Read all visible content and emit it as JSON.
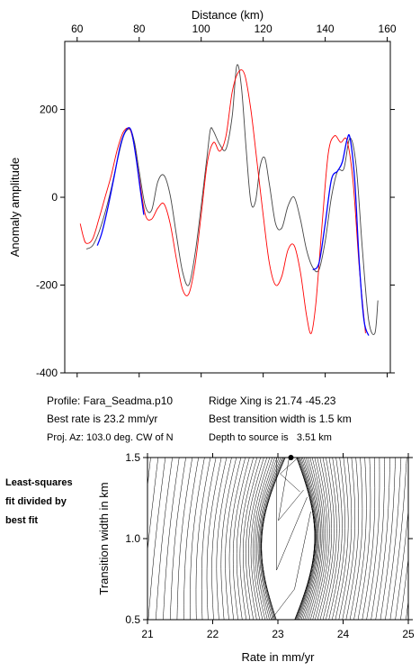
{
  "chart_data": [
    {
      "type": "line",
      "xlabel": "Distance (km)",
      "ylabel": "Anomaly amplitude",
      "xlim": [
        56,
        161
      ],
      "ylim": [
        -400,
        355
      ],
      "x_ticks": [
        60,
        80,
        100,
        120,
        140,
        160
      ],
      "y_ticks": [
        -400,
        -200,
        0,
        200
      ],
      "x_axis_position": "top",
      "grid": false,
      "series": [
        {
          "color": "#444444",
          "x": [
            63,
            65,
            67,
            69,
            71,
            73,
            75,
            77,
            78.5,
            80,
            82,
            84,
            86,
            88,
            90,
            92,
            94,
            96,
            98,
            100,
            102,
            103,
            104,
            106,
            108,
            110,
            111.5,
            113,
            114.5,
            116,
            117.5,
            119,
            120.5,
            122,
            124,
            126,
            128,
            130,
            132,
            134,
            136,
            138,
            140,
            142,
            144,
            146,
            148,
            150,
            152,
            154,
            156,
            157
          ],
          "y": [
            -118,
            -110,
            -80,
            -35,
            20,
            85,
            140,
            155,
            125,
            60,
            -20,
            -30,
            35,
            50,
            5,
            -85,
            -170,
            -200,
            -130,
            -20,
            100,
            155,
            150,
            120,
            110,
            185,
            300,
            250,
            110,
            -10,
            -10,
            70,
            90,
            30,
            -60,
            -70,
            -20,
            0,
            -50,
            -120,
            -160,
            -165,
            -100,
            0,
            60,
            65,
            135,
            70,
            -120,
            -280,
            -310,
            -235
          ]
        },
        {
          "color": "#ff0000",
          "x": [
            61,
            62,
            63,
            65,
            67,
            69,
            71,
            73,
            75,
            77,
            78.5,
            80,
            82,
            84,
            86,
            88,
            90,
            92,
            94,
            96,
            98,
            100,
            102,
            104,
            106,
            108,
            110,
            112,
            114,
            116,
            118,
            120,
            122,
            124,
            126,
            128,
            130,
            132,
            134,
            135.5,
            137,
            139,
            141,
            143,
            145,
            147,
            149,
            151,
            153
          ],
          "y": [
            -60,
            -90,
            -105,
            -95,
            -50,
            0,
            50,
            110,
            150,
            155,
            115,
            45,
            -40,
            -50,
            -25,
            -15,
            -60,
            -140,
            -210,
            -220,
            -155,
            -40,
            80,
            125,
            105,
            140,
            240,
            285,
            280,
            200,
            80,
            -40,
            -150,
            -200,
            -180,
            -120,
            -110,
            -170,
            -270,
            -310,
            -240,
            -60,
            100,
            140,
            125,
            130,
            35,
            -160,
            -310
          ]
        },
        {
          "color": "#0000ff",
          "x": [
            66.5,
            68,
            70,
            72,
            74,
            76,
            77.5,
            79,
            80.5,
            81.5
          ],
          "y": [
            -110,
            -80,
            -20,
            50,
            120,
            155,
            150,
            90,
            10,
            -40
          ]
        },
        {
          "color": "#0000ff",
          "x": [
            136,
            138,
            140,
            142,
            144,
            145.5,
            147,
            148,
            149.5,
            151,
            152.5,
            154
          ],
          "y": [
            -165,
            -150,
            -60,
            40,
            60,
            80,
            130,
            135,
            40,
            -150,
            -280,
            -315
          ]
        }
      ]
    },
    {
      "type": "contour",
      "xlabel": "Rate in mm/yr",
      "ylabel": "Transition width in km",
      "xlim": [
        21,
        25
      ],
      "ylim": [
        0.5,
        1.5
      ],
      "x_ticks": [
        21,
        22,
        23,
        24,
        25
      ],
      "y_ticks": [
        0.5,
        1.0,
        1.5
      ],
      "y_tick_labels": [
        "0.5",
        "1.0",
        "1.5"
      ],
      "best_fit_point": {
        "rate": 23.2,
        "width": 1.5
      }
    }
  ],
  "profile_info": {
    "profile": "Profile: Fara_Seadma.p10",
    "best_rate": "Best rate is 23.2 mm/yr",
    "proj_az": "Proj. Az: 103.0 deg. CW of N",
    "ridge_xing": "Ridge Xing is 21.74 -45.23",
    "best_transition": "Best transition width is 1.5 km",
    "depth": "Depth to source is   3.51 km"
  },
  "side_label": "Least-squares\nfit divided by\nbest fit"
}
